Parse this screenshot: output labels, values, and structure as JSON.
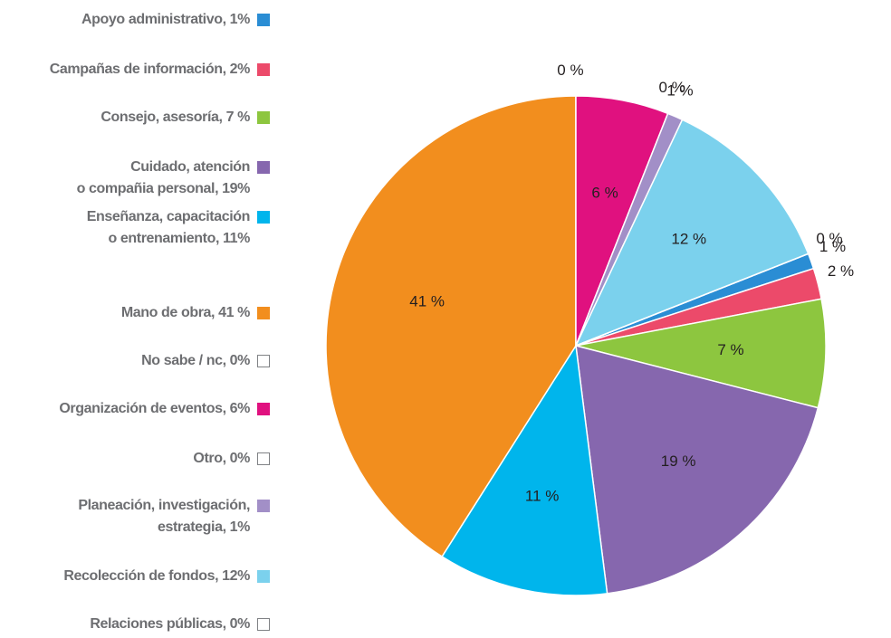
{
  "chart_data": {
    "type": "pie",
    "categories": [
      "Apoyo administrativo, 1%",
      "Campañas de información, 2%",
      "Consejo, asesoría, 7 %",
      "Cuidado, atención\no compañia personal, 19%",
      "Enseñanza, capacitación\no entrenamiento, 11%",
      "Mano de obra, 41 %",
      "No sabe / nc, 0%",
      "Organización de eventos, 6%",
      "Otro, 0%",
      "Planeación, investigación,\nestrategia, 1%",
      "Recolección de fondos, 12%",
      "Relaciones públicas, 0%"
    ],
    "values": [
      1,
      2,
      7,
      19,
      11,
      41,
      0,
      6,
      0,
      1,
      12,
      0
    ],
    "value_labels": [
      "1 %",
      "2 %",
      "7 %",
      "19 %",
      "11 %",
      "41 %",
      "0 %",
      "6 %",
      "0 %",
      "1 %",
      "12 %",
      "0 %"
    ],
    "colors": [
      "#2a8dd4",
      "#ec4a6a",
      "#8dc63f",
      "#8667ae",
      "#00b5ec",
      "#f28e1e",
      "#ffffff",
      "#e0117f",
      "#ffffff",
      "#a28fc7",
      "#7bd1ed",
      "#ffffff"
    ]
  }
}
